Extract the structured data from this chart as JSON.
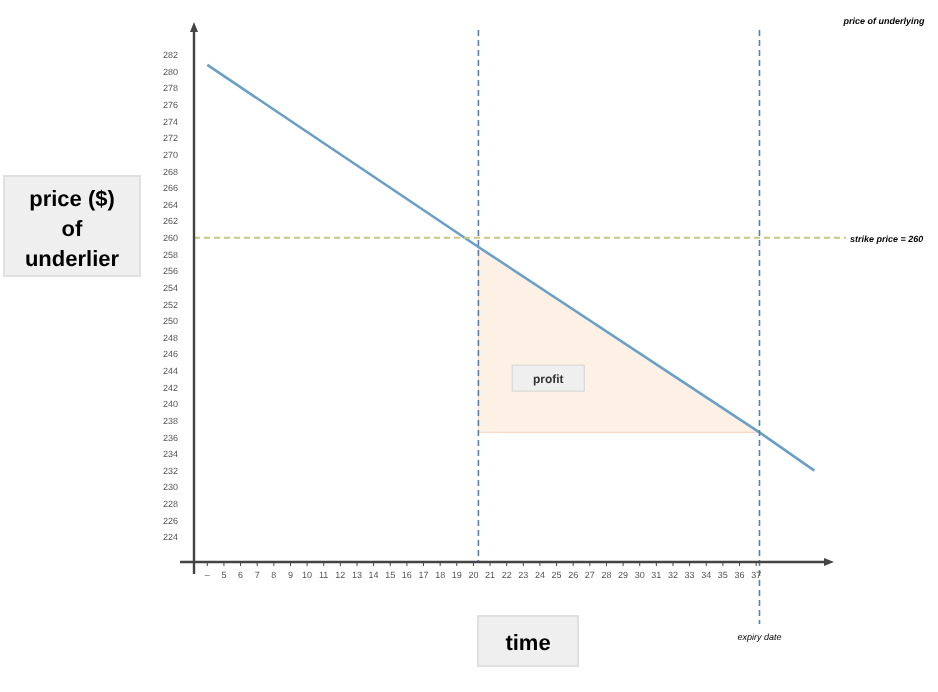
{
  "chart_data": {
    "type": "line",
    "xlabel": "time",
    "ylabel": "price ($) of underlier",
    "xlim": [
      3.2,
      41.2
    ],
    "ylim": [
      221,
      285
    ],
    "xticks": [
      {
        "value": 4,
        "label": "–"
      },
      5,
      6,
      7,
      8,
      9,
      10,
      11,
      12,
      13,
      14,
      15,
      16,
      17,
      18,
      19,
      20,
      21,
      22,
      23,
      24,
      25,
      26,
      27,
      28,
      29,
      30,
      31,
      32,
      33,
      34,
      35,
      36,
      37
    ],
    "yticks": [
      224,
      226,
      228,
      230,
      232,
      234,
      236,
      238,
      240,
      242,
      244,
      246,
      248,
      250,
      252,
      254,
      256,
      258,
      260,
      262,
      264,
      266,
      268,
      270,
      272,
      274,
      276,
      278,
      280,
      282
    ],
    "series": [
      {
        "color": "#6a9fc8",
        "x": [
          4.0,
          20.3,
          37.2,
          40.5
        ],
        "values": [
          280.8,
          258.9,
          236.6,
          232.0
        ],
        "lower": [
          null,
          236.6,
          236.6,
          null
        ],
        "upper": [
          null,
          258.9,
          236.6,
          null
        ]
      }
    ],
    "ref_lines": [
      {
        "axis": "y",
        "value": 260,
        "label": "strike price = 260",
        "color": "#c8c880",
        "line_style": "dashed"
      },
      {
        "axis": "x",
        "value": 20.3,
        "label": null,
        "color": "#5a7fa8",
        "line_style": "dashed"
      },
      {
        "axis": "x",
        "value": 37.2,
        "label": "expiry date",
        "color": "#5a7fa8",
        "line_style": "dashed"
      }
    ],
    "annotations": [
      "price of underlying",
      {
        "text": "profit",
        "x": 24.5,
        "y": 243
      }
    ],
    "grid": false,
    "legend": false,
    "marker": "none"
  }
}
